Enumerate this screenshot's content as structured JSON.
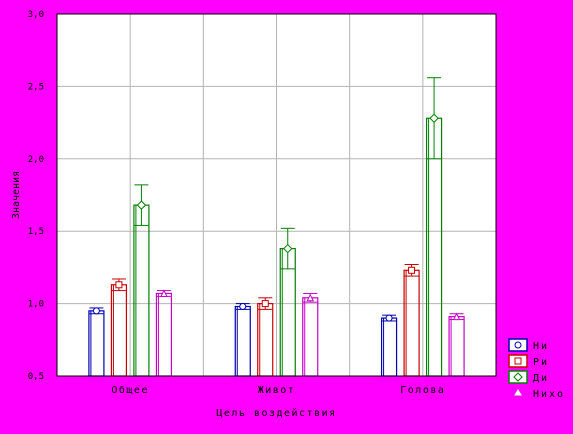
{
  "colors": {
    "background": "#ff00ff",
    "plot_area": "#ffffff",
    "grid": "#b4b4b4",
    "axis": "#000000"
  },
  "chart_data": {
    "type": "bar",
    "title": "",
    "xlabel": "Цель воздействия",
    "ylabel": "Значения",
    "categories": [
      "Общее",
      "Живот",
      "Голова"
    ],
    "ylim": [
      0.5,
      3.0
    ],
    "y_ticks": [
      "3,0",
      "2,5",
      "2,0",
      "1,5",
      "1,0",
      "0,5"
    ],
    "y_tick_values": [
      3.0,
      2.5,
      2.0,
      1.5,
      1.0,
      0.5
    ],
    "grid": true,
    "legend_position": "bottom-right",
    "error_bars": true,
    "series": [
      {
        "name": "Ни",
        "color": "#0000b4",
        "marker": "circle",
        "values": [
          0.95,
          0.98,
          0.9
        ],
        "errors": [
          0.02,
          0.02,
          0.02
        ]
      },
      {
        "name": "Ри",
        "color": "#c80000",
        "marker": "square",
        "values": [
          1.13,
          1.0,
          1.23
        ],
        "errors": [
          0.04,
          0.04,
          0.04
        ]
      },
      {
        "name": "Ди",
        "color": "#008200",
        "marker": "diamond",
        "values": [
          1.68,
          1.38,
          2.28
        ],
        "errors": [
          0.14,
          0.14,
          0.28
        ]
      },
      {
        "name": "Нихо",
        "color": "#c800c8",
        "marker": "triangle",
        "values": [
          1.07,
          1.04,
          0.91
        ],
        "errors": [
          0.02,
          0.03,
          0.02
        ]
      }
    ]
  }
}
